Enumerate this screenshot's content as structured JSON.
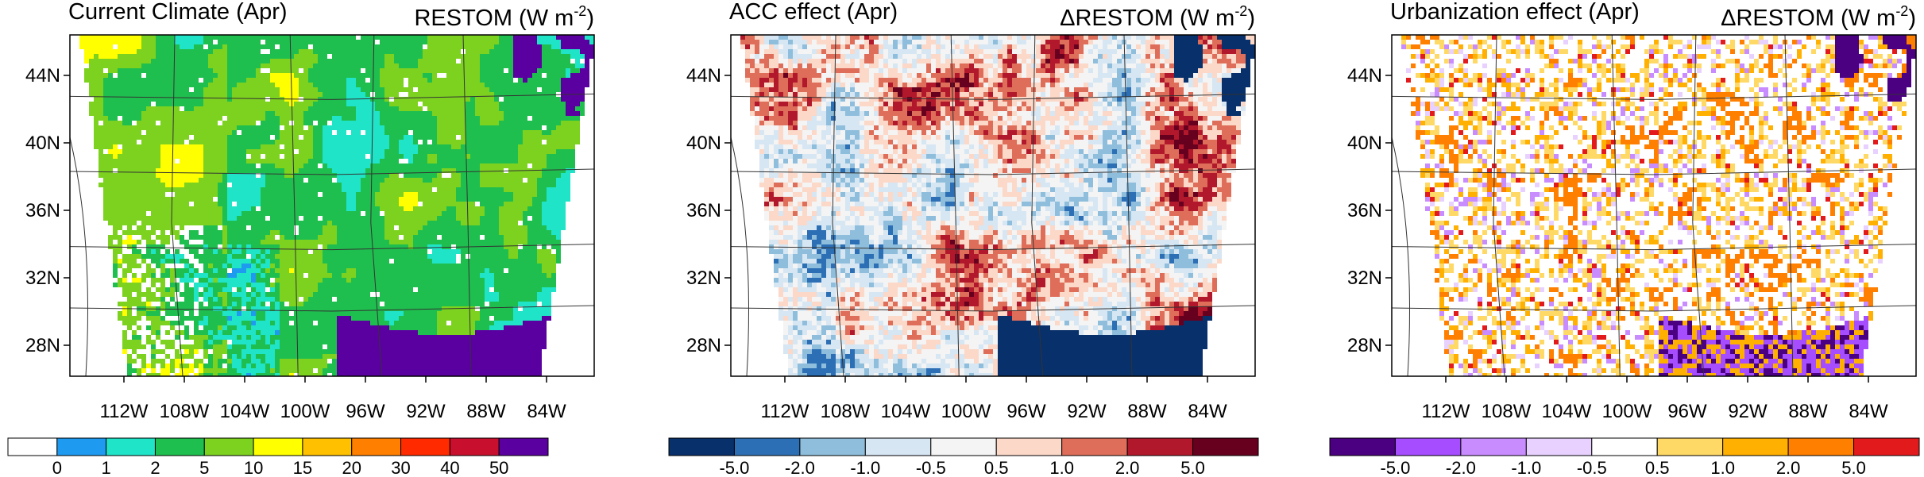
{
  "panels": [
    {
      "title_left": "Current Climate (Apr)",
      "title_right": "RESTOM (W m",
      "title_right_sup": "-2",
      "title_right_close": ")",
      "kind": "absolute",
      "colorbar": {
        "colors": [
          "#ffffff",
          "#1e9bf0",
          "#20e4c8",
          "#1fbf4f",
          "#7dd21f",
          "#ffff00",
          "#ffc000",
          "#ff8000",
          "#ff2a00",
          "#c8102e",
          "#5b00a0"
        ],
        "labels": [
          "0",
          "1",
          "2",
          "5",
          "10",
          "15",
          "20",
          "30",
          "40",
          "50"
        ]
      }
    },
    {
      "title_left": "ACC effect (Apr)",
      "title_right": "ΔRESTOM (W m",
      "title_right_sup": "-2",
      "title_right_close": ")",
      "kind": "diff",
      "colorbar": {
        "colors": [
          "#08306b",
          "#2c6fb5",
          "#8fbedc",
          "#d6e6f3",
          "#f4f4f4",
          "#fbd8c8",
          "#de6e5a",
          "#b2182b",
          "#67001f"
        ],
        "labels": [
          "-5.0",
          "-2.0",
          "-1.0",
          "-0.5",
          "0.5",
          "1.0",
          "2.0",
          "5.0"
        ]
      }
    },
    {
      "title_left": "Urbanization effect (Apr)",
      "title_right": "ΔRESTOM (W m",
      "title_right_sup": "-2",
      "title_right_close": ")",
      "kind": "urban",
      "colorbar": {
        "colors": [
          "#4b0082",
          "#a64dff",
          "#c98cff",
          "#e8d1ff",
          "#ffffff",
          "#ffd966",
          "#ffb000",
          "#ff7f00",
          "#e31a1c"
        ],
        "labels": [
          "-5.0",
          "-2.0",
          "-1.0",
          "-0.5",
          "0.5",
          "1.0",
          "2.0",
          "5.0"
        ]
      }
    }
  ],
  "lat_labels": [
    "44N",
    "40N",
    "36N",
    "32N",
    "28N"
  ],
  "lon_labels": [
    "112W",
    "108W",
    "104W",
    "100W",
    "96W",
    "92W",
    "88W",
    "84W"
  ]
}
